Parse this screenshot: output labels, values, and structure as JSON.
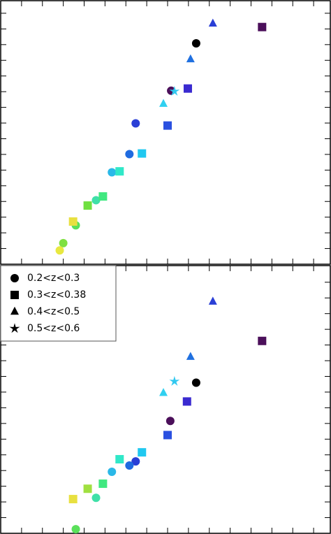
{
  "chart_data": [
    {
      "type": "scatter",
      "xlim": [
        0,
        15.8
      ],
      "ylim": [
        0,
        8.4
      ],
      "xticks": [
        1,
        2,
        3,
        4,
        5,
        6,
        7,
        8,
        9,
        10,
        11,
        12,
        13,
        14,
        15
      ],
      "yticks": [
        0.5,
        1,
        1.5,
        2,
        2.5,
        3,
        3.5,
        4,
        4.5,
        5,
        5.5,
        6,
        6.5,
        7,
        7.5,
        8
      ],
      "series": [
        {
          "marker": "circle",
          "x": [
            9.37,
            8.17,
            6.47,
            6.17,
            5.33,
            4.57,
            3.6,
            3.0,
            2.83
          ],
          "values": [
            7.04,
            5.53,
            4.49,
            3.51,
            2.93,
            2.04,
            1.24,
            0.67,
            0.44
          ],
          "point_colors": [
            "#000000",
            "#4b0f5a",
            "#2a3fd6",
            "#1f6be0",
            "#2ab8e8",
            "#3fe0a8",
            "#5ae05a",
            "#7fe040",
            "#e8e840"
          ]
        },
        {
          "marker": "square",
          "x": [
            12.53,
            8.97,
            8.0,
            6.77,
            5.7,
            4.9,
            4.17,
            3.47
          ],
          "values": [
            7.56,
            5.6,
            4.42,
            3.53,
            2.96,
            2.16,
            1.87,
            1.36
          ],
          "point_colors": [
            "#4b0f5a",
            "#3a2ad0",
            "#2a50e0",
            "#20c8f0",
            "#30e8c8",
            "#40e880",
            "#70e040",
            "#e8e040"
          ]
        },
        {
          "marker": "triangle",
          "x": [
            10.17,
            9.1,
            7.8
          ],
          "values": [
            7.67,
            6.53,
            5.11
          ],
          "point_colors": [
            "#2a3fd6",
            "#2070e0",
            "#30d0f0"
          ]
        },
        {
          "marker": "star",
          "x": [
            8.33
          ],
          "values": [
            5.51
          ],
          "point_colors": [
            "#30c8f0"
          ]
        }
      ]
    },
    {
      "type": "scatter",
      "xlim": [
        0,
        15.8
      ],
      "ylim": [
        0,
        8.53
      ],
      "xticks": [
        1,
        2,
        3,
        4,
        5,
        6,
        7,
        8,
        9,
        10,
        11,
        12,
        13,
        14,
        15
      ],
      "yticks": [
        0.5,
        1,
        1.5,
        2,
        2.5,
        3,
        3.5,
        4,
        4.5,
        5,
        5.5,
        6,
        6.5,
        7,
        7.5,
        8
      ],
      "legend": "upper left",
      "series": [
        {
          "name": "0.2<z<0.3",
          "color": "#000000",
          "marker": "circle",
          "x": [
            9.37,
            8.13,
            6.47,
            6.17,
            5.33,
            4.57,
            3.6
          ],
          "values": [
            4.8,
            3.58,
            2.29,
            2.16,
            1.96,
            1.13,
            0.13
          ],
          "point_colors": [
            "#000000",
            "#4b0f5a",
            "#2a3fd6",
            "#1f6be0",
            "#2ab8e8",
            "#3fe0a8",
            "#5ae05a"
          ]
        },
        {
          "name": "0.3<z<0.38",
          "color": "#000000",
          "marker": "square",
          "x": [
            12.53,
            8.93,
            8.0,
            6.77,
            5.7,
            4.9,
            4.17,
            3.47
          ],
          "values": [
            6.13,
            4.2,
            3.13,
            2.58,
            2.36,
            1.58,
            1.42,
            1.09
          ],
          "point_colors": [
            "#4b0f5a",
            "#3a2ad0",
            "#2a50e0",
            "#20c8f0",
            "#30e8c8",
            "#40e880",
            "#a0e040",
            "#e8e040"
          ]
        },
        {
          "name": "0.4<z<0.5",
          "color": "#000000",
          "marker": "triangle",
          "x": [
            10.17,
            9.1,
            7.8
          ],
          "values": [
            7.38,
            5.62,
            4.47
          ],
          "point_colors": [
            "#2a3fd6",
            "#2070e0",
            "#30d0f0"
          ]
        },
        {
          "name": "0.5<z<0.6",
          "color": "#000000",
          "marker": "star",
          "x": [
            8.33
          ],
          "values": [
            4.84
          ],
          "point_colors": [
            "#30c8f0"
          ]
        }
      ]
    }
  ]
}
